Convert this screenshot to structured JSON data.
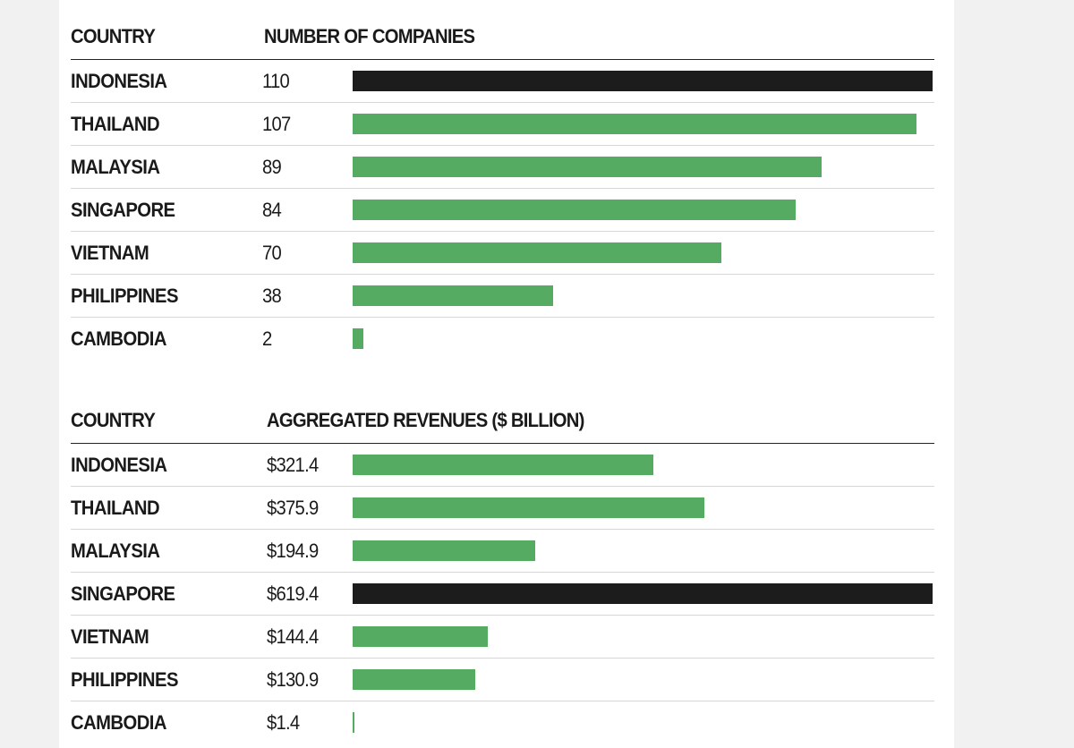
{
  "chart_data": [
    {
      "type": "bar",
      "orientation": "horizontal",
      "title": "",
      "columns": {
        "label": "COUNTRY",
        "value": "NUMBER OF COMPANIES"
      },
      "categories": [
        "INDONESIA",
        "THAILAND",
        "MALAYSIA",
        "SINGAPORE",
        "VIETNAM",
        "PHILIPPINES",
        "CAMBODIA"
      ],
      "values": [
        110,
        107,
        89,
        84,
        70,
        38,
        2
      ],
      "value_labels": [
        "110",
        "107",
        "89",
        "84",
        "70",
        "38",
        "2"
      ],
      "highlight": "INDONESIA",
      "xlim": [
        0,
        110
      ]
    },
    {
      "type": "bar",
      "orientation": "horizontal",
      "title": "",
      "columns": {
        "label": "COUNTRY",
        "value": "AGGREGATED REVENUES ($ BILLION)"
      },
      "categories": [
        "INDONESIA",
        "THAILAND",
        "MALAYSIA",
        "SINGAPORE",
        "VIETNAM",
        "PHILIPPINES",
        "CAMBODIA"
      ],
      "values": [
        321.4,
        375.9,
        194.9,
        619.4,
        144.4,
        130.9,
        1.4
      ],
      "value_labels": [
        "$321.4",
        "$375.9",
        "$194.9",
        "$619.4",
        "$144.4",
        "$130.9",
        "$1.4"
      ],
      "highlight": "SINGAPORE",
      "xlim": [
        0,
        619.4
      ]
    }
  ],
  "colors": {
    "bar": "#55ab62",
    "highlight": "#1c1c1c",
    "rule": "#222222",
    "divider": "#d6d6d6"
  }
}
